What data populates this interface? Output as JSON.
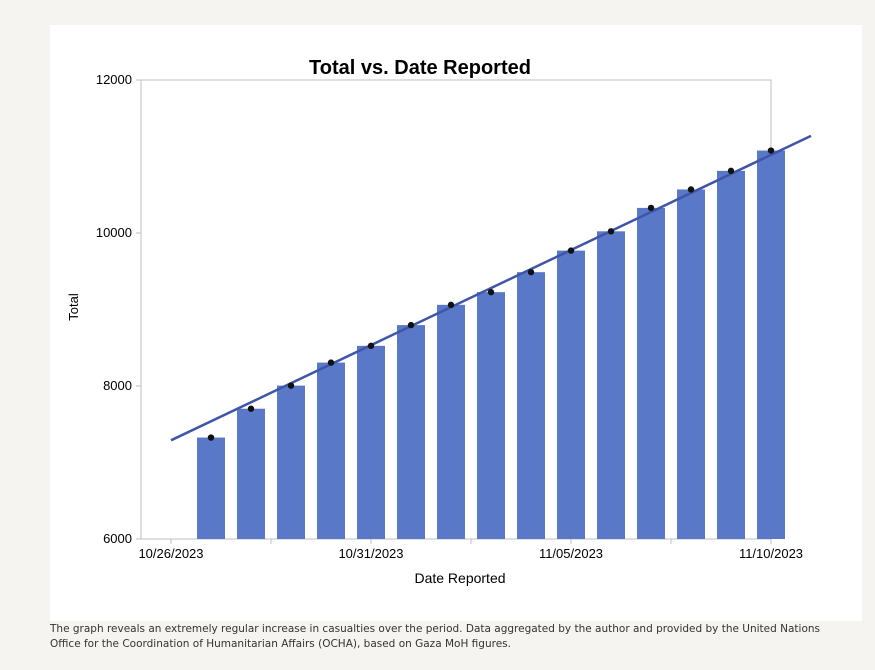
{
  "caption": "The graph reveals an extremely regular increase in casualties over the period. Data aggregated by the author and provided by the United Nations Office for the Coordination of Humanitarian Affairs (OCHA), based on Gaza MoH figures.",
  "colors": {
    "bar": "#5a78c8",
    "trend_line": "#3f56a8",
    "point": "#111111",
    "axis": "#bfbfbf"
  },
  "chart_data": {
    "type": "bar",
    "title": "Total vs. Date Reported",
    "xlabel": "Date Reported",
    "ylabel": "Total",
    "ylim": [
      6000,
      12000
    ],
    "yticks": [
      6000,
      8000,
      10000,
      12000
    ],
    "xlim": [
      "2023-10-26",
      "2023-11-10"
    ],
    "xticks": [
      {
        "date": "2023-10-26",
        "label": "10/26/2023"
      },
      {
        "date": "2023-10-31",
        "label": "10/31/2023"
      },
      {
        "date": "2023-11-05",
        "label": "11/05/2023"
      },
      {
        "date": "2023-11-10",
        "label": "11/10/2023"
      }
    ],
    "grid": false,
    "x": [
      "2023-10-27",
      "2023-10-28",
      "2023-10-29",
      "2023-10-30",
      "2023-10-31",
      "2023-11-01",
      "2023-11-02",
      "2023-11-03",
      "2023-11-04",
      "2023-11-05",
      "2023-11-06",
      "2023-11-07",
      "2023-11-08",
      "2023-11-09",
      "2023-11-10"
    ],
    "values": [
      7326,
      7703,
      8005,
      8306,
      8525,
      8796,
      9061,
      9227,
      9488,
      9770,
      10022,
      10328,
      10569,
      10812,
      11078
    ],
    "points": [
      7326,
      7703,
      8005,
      8306,
      8525,
      8796,
      9061,
      9227,
      9488,
      9770,
      10022,
      10328,
      10569,
      10812,
      11078
    ],
    "trend_line": {
      "start": {
        "date": "2023-10-26",
        "value": 7290
      },
      "end": {
        "date": "2023-11-11",
        "value": 11270
      }
    }
  }
}
